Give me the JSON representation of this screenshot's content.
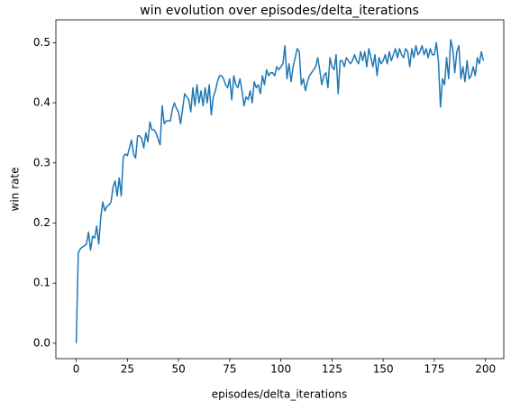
{
  "chart_data": {
    "type": "line",
    "title": "win evolution over episodes/delta_iterations",
    "xlabel": "episodes/delta_iterations",
    "ylabel": "win rate",
    "x": [
      0,
      1,
      2,
      3,
      4,
      5,
      6,
      7,
      8,
      9,
      10,
      11,
      12,
      13,
      14,
      15,
      16,
      17,
      18,
      19,
      20,
      21,
      22,
      23,
      24,
      25,
      26,
      27,
      28,
      29,
      30,
      31,
      32,
      33,
      34,
      35,
      36,
      37,
      38,
      39,
      40,
      41,
      42,
      43,
      44,
      45,
      46,
      47,
      48,
      49,
      50,
      51,
      52,
      53,
      54,
      55,
      56,
      57,
      58,
      59,
      60,
      61,
      62,
      63,
      64,
      65,
      66,
      67,
      68,
      69,
      70,
      71,
      72,
      73,
      74,
      75,
      76,
      77,
      78,
      79,
      80,
      81,
      82,
      83,
      84,
      85,
      86,
      87,
      88,
      89,
      90,
      91,
      92,
      93,
      94,
      95,
      96,
      97,
      98,
      99,
      100,
      101,
      102,
      103,
      104,
      105,
      106,
      107,
      108,
      109,
      110,
      111,
      112,
      113,
      114,
      115,
      116,
      117,
      118,
      119,
      120,
      121,
      122,
      123,
      124,
      125,
      126,
      127,
      128,
      129,
      130,
      131,
      132,
      133,
      134,
      135,
      136,
      137,
      138,
      139,
      140,
      141,
      142,
      143,
      144,
      145,
      146,
      147,
      148,
      149,
      150,
      151,
      152,
      153,
      154,
      155,
      156,
      157,
      158,
      159,
      160,
      161,
      162,
      163,
      164,
      165,
      166,
      167,
      168,
      169,
      170,
      171,
      172,
      173,
      174,
      175,
      176,
      177,
      178,
      179,
      180,
      181,
      182,
      183,
      184,
      185,
      186,
      187,
      188,
      189,
      190,
      191,
      192,
      193,
      194,
      195,
      196,
      197,
      198,
      199
    ],
    "series": [
      {
        "name": "win rate",
        "color": "#1f77b4",
        "values": [
          0.0,
          0.15,
          0.157,
          0.16,
          0.162,
          0.165,
          0.185,
          0.155,
          0.178,
          0.175,
          0.195,
          0.165,
          0.21,
          0.235,
          0.22,
          0.228,
          0.23,
          0.235,
          0.26,
          0.27,
          0.245,
          0.275,
          0.245,
          0.31,
          0.315,
          0.312,
          0.325,
          0.338,
          0.315,
          0.308,
          0.345,
          0.345,
          0.34,
          0.325,
          0.35,
          0.335,
          0.368,
          0.355,
          0.355,
          0.35,
          0.34,
          0.33,
          0.395,
          0.365,
          0.37,
          0.37,
          0.37,
          0.39,
          0.4,
          0.39,
          0.385,
          0.365,
          0.39,
          0.415,
          0.41,
          0.405,
          0.385,
          0.425,
          0.395,
          0.43,
          0.4,
          0.42,
          0.395,
          0.425,
          0.4,
          0.43,
          0.38,
          0.41,
          0.42,
          0.435,
          0.445,
          0.445,
          0.44,
          0.43,
          0.425,
          0.44,
          0.405,
          0.445,
          0.43,
          0.425,
          0.44,
          0.42,
          0.395,
          0.41,
          0.405,
          0.42,
          0.4,
          0.435,
          0.425,
          0.43,
          0.415,
          0.445,
          0.43,
          0.455,
          0.445,
          0.45,
          0.45,
          0.445,
          0.46,
          0.455,
          0.46,
          0.465,
          0.495,
          0.44,
          0.465,
          0.435,
          0.46,
          0.475,
          0.49,
          0.485,
          0.43,
          0.44,
          0.42,
          0.435,
          0.445,
          0.45,
          0.455,
          0.46,
          0.475,
          0.455,
          0.43,
          0.445,
          0.45,
          0.425,
          0.475,
          0.46,
          0.455,
          0.48,
          0.415,
          0.47,
          0.47,
          0.46,
          0.475,
          0.47,
          0.465,
          0.47,
          0.48,
          0.47,
          0.465,
          0.485,
          0.47,
          0.485,
          0.46,
          0.49,
          0.475,
          0.46,
          0.48,
          0.445,
          0.475,
          0.465,
          0.47,
          0.48,
          0.465,
          0.485,
          0.47,
          0.48,
          0.49,
          0.475,
          0.49,
          0.48,
          0.475,
          0.49,
          0.485,
          0.46,
          0.49,
          0.475,
          0.495,
          0.48,
          0.485,
          0.495,
          0.48,
          0.49,
          0.475,
          0.49,
          0.48,
          0.48,
          0.5,
          0.47,
          0.393,
          0.44,
          0.43,
          0.475,
          0.44,
          0.505,
          0.49,
          0.45,
          0.485,
          0.495,
          0.44,
          0.46,
          0.435,
          0.47,
          0.44,
          0.445,
          0.46,
          0.445,
          0.475,
          0.465,
          0.485,
          0.47
        ]
      }
    ],
    "xlim": [
      -9.95,
      208.95
    ],
    "ylim": [
      -0.0256,
      0.538
    ],
    "xticks": [
      0,
      25,
      50,
      75,
      100,
      125,
      150,
      175,
      200
    ],
    "yticks": [
      {
        "value": 0.0,
        "label": "0.0"
      },
      0.1,
      0.2,
      0.3,
      0.4,
      0.5
    ],
    "grid": false
  }
}
